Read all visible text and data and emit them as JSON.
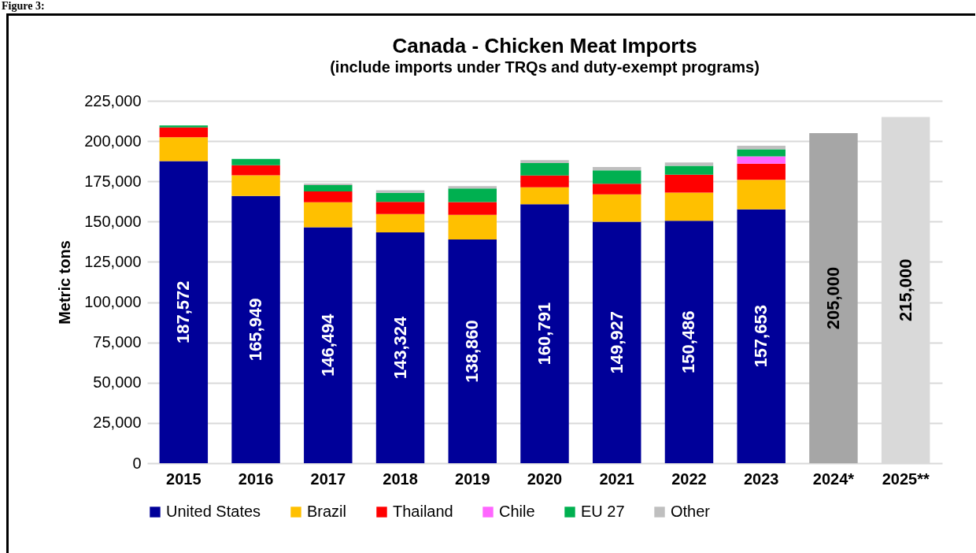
{
  "chart_data": {
    "type": "bar",
    "stacked": true,
    "title": "Canada - Chicken Meat Imports",
    "subtitle": "(include imports under TRQs and duty-exempt programs)",
    "ylabel": "Metric tons",
    "annotations": [
      "Figure 3:"
    ],
    "categories": [
      "2015",
      "2016",
      "2017",
      "2018",
      "2019",
      "2020",
      "2021",
      "2022",
      "2023",
      "2024*",
      "2025**"
    ],
    "series": [
      {
        "name": "United States",
        "color": "#000099",
        "values": [
          187572,
          165949,
          146494,
          143324,
          138860,
          160791,
          149927,
          150486,
          157653,
          null,
          null
        ],
        "value_labels": [
          "187,572",
          "165,949",
          "146,494",
          "143,324",
          "138,860",
          "160,791",
          "149,927",
          "150,486",
          "157,653",
          null,
          null
        ]
      },
      {
        "name": "Brazil",
        "color": "#ffc000",
        "values": [
          14800,
          12800,
          15500,
          11400,
          15300,
          10500,
          17000,
          17500,
          18300,
          null,
          null
        ]
      },
      {
        "name": "Thailand",
        "color": "#ff0000",
        "values": [
          6100,
          6300,
          6800,
          7500,
          8000,
          7400,
          6600,
          11200,
          10000,
          null,
          null
        ]
      },
      {
        "name": "Chile",
        "color": "#ff66ff",
        "values": [
          null,
          null,
          null,
          null,
          null,
          null,
          null,
          null,
          4600,
          null,
          null
        ]
      },
      {
        "name": "EU 27",
        "color": "#00b050",
        "values": [
          1200,
          3900,
          3900,
          5700,
          8400,
          7700,
          8300,
          5400,
          4400,
          null,
          null
        ]
      },
      {
        "name": "Other",
        "color": "#bfbfbf",
        "values": [
          null,
          null,
          1000,
          1600,
          1500,
          1800,
          2100,
          2200,
          2200,
          null,
          null
        ]
      },
      {
        "color": "#a6a6a6",
        "values": [
          null,
          null,
          null,
          null,
          null,
          null,
          null,
          null,
          null,
          205000,
          null
        ],
        "value_labels": [
          null,
          null,
          null,
          null,
          null,
          null,
          null,
          null,
          null,
          "205,000",
          null
        ]
      },
      {
        "color": "#d9d9d9",
        "values": [
          null,
          null,
          null,
          null,
          null,
          null,
          null,
          null,
          null,
          null,
          215000
        ],
        "value_labels": [
          null,
          null,
          null,
          null,
          null,
          null,
          null,
          null,
          null,
          null,
          "215,000"
        ]
      }
    ],
    "ylim": [
      0,
      225000
    ],
    "yticks": [
      0,
      {
        "value": 25000,
        "label": "25,000"
      },
      {
        "value": 50000,
        "label": "50,000"
      },
      {
        "value": 75000,
        "label": "75,000"
      },
      {
        "value": 100000,
        "label": "100,000"
      },
      {
        "value": 125000,
        "label": "125,000"
      },
      {
        "value": 150000,
        "label": "150,000"
      },
      {
        "value": 175000,
        "label": "175,000"
      },
      {
        "value": 200000,
        "label": "200,000"
      },
      {
        "value": 225000,
        "label": "225,000"
      }
    ],
    "grid": "y",
    "legend": "bottom"
  }
}
